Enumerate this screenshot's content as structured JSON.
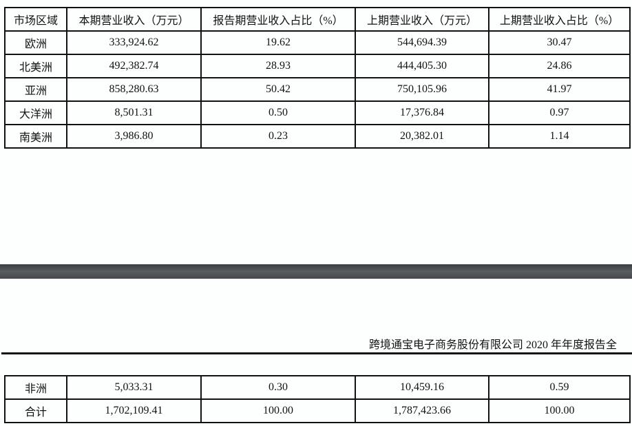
{
  "page_header": "跨境通宝电子商务股份有限公司 2020 年年度报告全",
  "table": {
    "columns": [
      "市场区域",
      "本期营业收入（万元）",
      "报告期营业收入占比（%）",
      "上期营业收入（万元）",
      "上期营业收入占比（%）"
    ],
    "rows_page1": [
      [
        "欧洲",
        "333,924.62",
        "19.62",
        "544,694.39",
        "30.47"
      ],
      [
        "北美洲",
        "492,382.74",
        "28.93",
        "444,405.30",
        "24.86"
      ],
      [
        "亚洲",
        "858,280.63",
        "50.42",
        "750,105.96",
        "41.97"
      ],
      [
        "大洋洲",
        "8,501.31",
        "0.50",
        "17,376.84",
        "0.97"
      ],
      [
        "南美洲",
        "3,986.80",
        "0.23",
        "20,382.01",
        "1.14"
      ]
    ],
    "rows_page2": [
      [
        "非洲",
        "5,033.31",
        "0.30",
        "10,459.16",
        "0.59"
      ],
      [
        "合计",
        "1,702,109.41",
        "100.00",
        "1,787,423.66",
        "100.00"
      ]
    ]
  }
}
